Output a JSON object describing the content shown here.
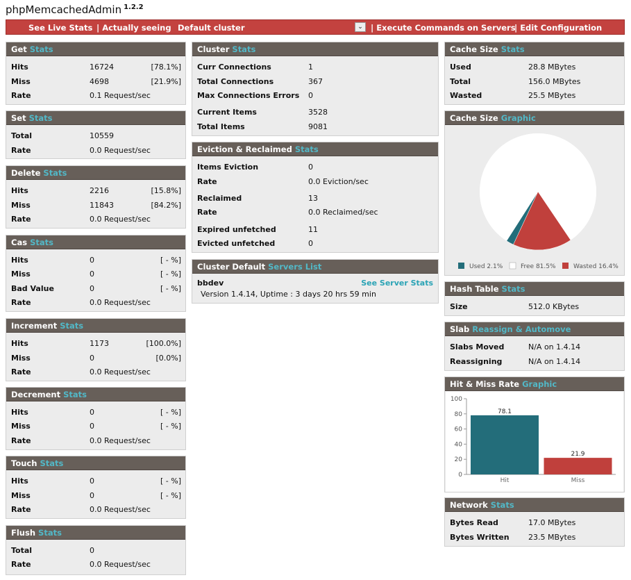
{
  "app": {
    "title": "phpMemcachedAdmin",
    "version": "1.2.2"
  },
  "menu": {
    "live_stats": "See Live Stats",
    "actually_seeing": "| Actually seeing",
    "cluster": "Default cluster",
    "commands": "| Execute Commands on Servers",
    "edit_config": "| Edit Configuration"
  },
  "get": {
    "title": "Get",
    "accent": "Stats",
    "rows": [
      {
        "label": "Hits",
        "value": "16724",
        "pct": "[78.1%]"
      },
      {
        "label": "Miss",
        "value": "4698",
        "pct": "[21.9%]"
      },
      {
        "label": "Rate",
        "value": "0.1 Request/sec",
        "pct": ""
      }
    ]
  },
  "set": {
    "title": "Set",
    "accent": "Stats",
    "rows": [
      {
        "label": "Total",
        "value": "10559",
        "pct": ""
      },
      {
        "label": "Rate",
        "value": "0.0 Request/sec",
        "pct": ""
      }
    ]
  },
  "delete": {
    "title": "Delete",
    "accent": "Stats",
    "rows": [
      {
        "label": "Hits",
        "value": "2216",
        "pct": "[15.8%]"
      },
      {
        "label": "Miss",
        "value": "11843",
        "pct": "[84.2%]"
      },
      {
        "label": "Rate",
        "value": "0.0 Request/sec",
        "pct": ""
      }
    ]
  },
  "cas": {
    "title": "Cas",
    "accent": "Stats",
    "rows": [
      {
        "label": "Hits",
        "value": "0",
        "pct": "[ - %]"
      },
      {
        "label": "Miss",
        "value": "0",
        "pct": "[ - %]"
      },
      {
        "label": "Bad Value",
        "value": "0",
        "pct": "[ - %]"
      },
      {
        "label": "Rate",
        "value": "0.0 Request/sec",
        "pct": ""
      }
    ]
  },
  "increment": {
    "title": "Increment",
    "accent": "Stats",
    "rows": [
      {
        "label": "Hits",
        "value": "1173",
        "pct": "[100.0%]"
      },
      {
        "label": "Miss",
        "value": "0",
        "pct": "[0.0%]"
      },
      {
        "label": "Rate",
        "value": "0.0 Request/sec",
        "pct": ""
      }
    ]
  },
  "decrement": {
    "title": "Decrement",
    "accent": "Stats",
    "rows": [
      {
        "label": "Hits",
        "value": "0",
        "pct": "[ - %]"
      },
      {
        "label": "Miss",
        "value": "0",
        "pct": "[ - %]"
      },
      {
        "label": "Rate",
        "value": "0.0 Request/sec",
        "pct": ""
      }
    ]
  },
  "touch": {
    "title": "Touch",
    "accent": "Stats",
    "rows": [
      {
        "label": "Hits",
        "value": "0",
        "pct": "[ - %]"
      },
      {
        "label": "Miss",
        "value": "0",
        "pct": "[ - %]"
      },
      {
        "label": "Rate",
        "value": "0.0 Request/sec",
        "pct": ""
      }
    ]
  },
  "flush": {
    "title": "Flush",
    "accent": "Stats",
    "rows": [
      {
        "label": "Total",
        "value": "0",
        "pct": ""
      },
      {
        "label": "Rate",
        "value": "0.0 Request/sec",
        "pct": ""
      }
    ]
  },
  "cluster": {
    "title": "Cluster",
    "accent": "Stats",
    "rows": [
      {
        "label": "Curr Connections",
        "value": "1"
      },
      {
        "label": "Total Connections",
        "value": "367"
      },
      {
        "label": "Max Connections Errors",
        "value": "0"
      },
      {
        "label": "Current Items",
        "value": "3528"
      },
      {
        "label": "Total Items",
        "value": "9081"
      }
    ]
  },
  "eviction": {
    "title": "Eviction & Reclaimed",
    "accent": "Stats",
    "rows": [
      {
        "label": "Items Eviction",
        "value": "0"
      },
      {
        "label": "Rate",
        "value": "0.0 Eviction/sec"
      },
      {
        "label": "Reclaimed",
        "value": "13"
      },
      {
        "label": "Rate",
        "value": "0.0 Reclaimed/sec"
      },
      {
        "label": "Expired unfetched",
        "value": "11"
      },
      {
        "label": "Evicted unfetched",
        "value": "0"
      }
    ]
  },
  "servers": {
    "title": "Cluster Default",
    "accent": "Servers List",
    "server_name": "bbdev",
    "server_link": "See Server Stats",
    "server_info": "Version 1.4.14, Uptime : 3 days 20 hrs 59 min"
  },
  "cache_size": {
    "title": "Cache Size",
    "accent": "Stats",
    "rows": [
      {
        "label": "Used",
        "value": "28.8 MBytes"
      },
      {
        "label": "Total",
        "value": "156.0 MBytes"
      },
      {
        "label": "Wasted",
        "value": "25.5 MBytes"
      }
    ]
  },
  "cache_graphic": {
    "title": "Cache Size",
    "accent": "Graphic"
  },
  "hash_table": {
    "title": "Hash Table",
    "accent": "Stats",
    "rows": [
      {
        "label": "Size",
        "value": "512.0 KBytes"
      }
    ]
  },
  "slab": {
    "title": "Slab",
    "accent": "Reassign & Automove",
    "rows": [
      {
        "label": "Slabs Moved",
        "value": "N/A on 1.4.14"
      },
      {
        "label": "Reassigning",
        "value": "N/A on 1.4.14"
      }
    ]
  },
  "hitmiss_graphic": {
    "title": "Hit & Miss Rate",
    "accent": "Graphic"
  },
  "network": {
    "title": "Network",
    "accent": "Stats",
    "rows": [
      {
        "label": "Bytes Read",
        "value": "17.0 MBytes"
      },
      {
        "label": "Bytes Written",
        "value": "23.5 MBytes"
      }
    ]
  },
  "colors": {
    "teal": "#236d7a",
    "red": "#c0403c",
    "accent": "#52b8c7",
    "header": "#675f59",
    "menu": "#c3423f"
  },
  "chart_data": [
    {
      "type": "pie",
      "categories": [
        "Used 2.1%",
        "Free 81.5%",
        "Wasted 16.4%"
      ],
      "values": [
        2.1,
        81.5,
        16.4
      ],
      "colors": [
        "#236d7a",
        "#ffffff",
        "#c0403c"
      ]
    },
    {
      "type": "bar",
      "categories": [
        "Hit",
        "Miss"
      ],
      "values": [
        78.1,
        21.9
      ],
      "ylim": [
        0,
        100
      ],
      "yticks": [
        0,
        20,
        40,
        60,
        80,
        100
      ],
      "colors": [
        "#236d7a",
        "#c0403c"
      ]
    }
  ]
}
